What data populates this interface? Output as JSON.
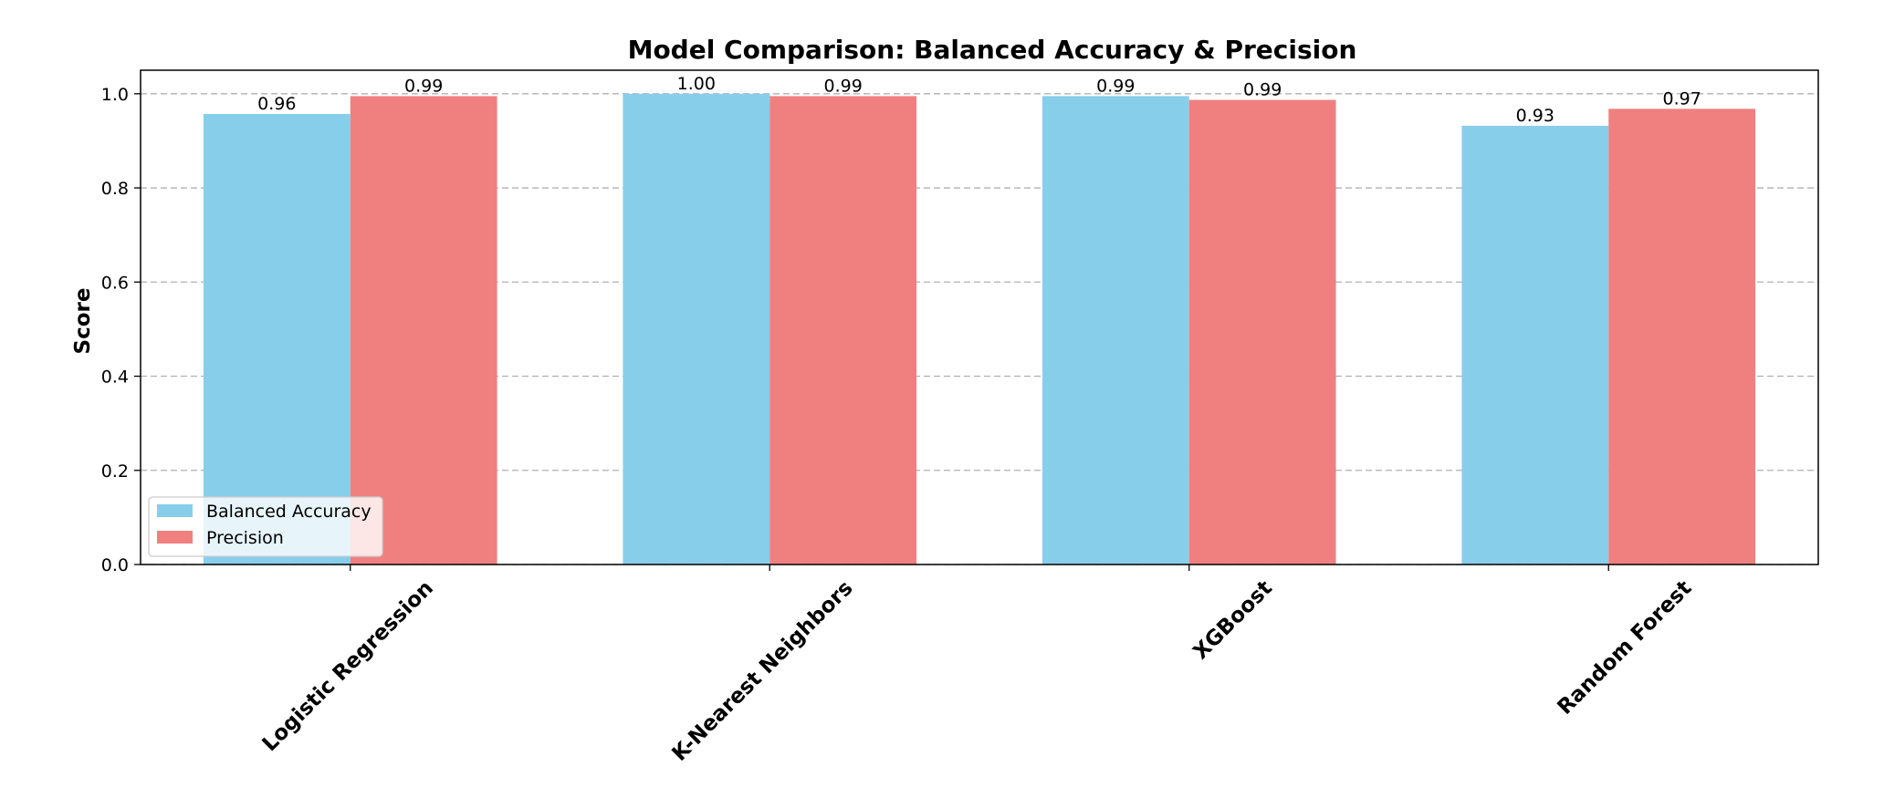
{
  "chart_data": {
    "type": "bar",
    "title": "Model Comparison: Balanced Accuracy & Precision",
    "xlabel": "",
    "ylabel": "Score",
    "ylim": [
      0,
      1.05
    ],
    "yticks": [
      "0.0",
      "0.2",
      "0.4",
      "0.6",
      "0.8",
      "1.0"
    ],
    "categories": [
      "Logistic Regression",
      "K-Nearest Neighbors",
      "XGBoost",
      "Random Forest"
    ],
    "series": [
      {
        "name": "Balanced Accuracy",
        "color": "#87ceeb",
        "values": [
          0.957,
          1.0,
          0.995,
          0.932
        ],
        "labels": [
          "0.96",
          "1.00",
          "0.99",
          "0.93"
        ]
      },
      {
        "name": "Precision",
        "color": "#f08080",
        "values": [
          0.995,
          0.995,
          0.987,
          0.968
        ],
        "labels": [
          "0.99",
          "0.99",
          "0.99",
          "0.97"
        ]
      }
    ],
    "grid": "y-dashed",
    "legend": "lower-left"
  }
}
